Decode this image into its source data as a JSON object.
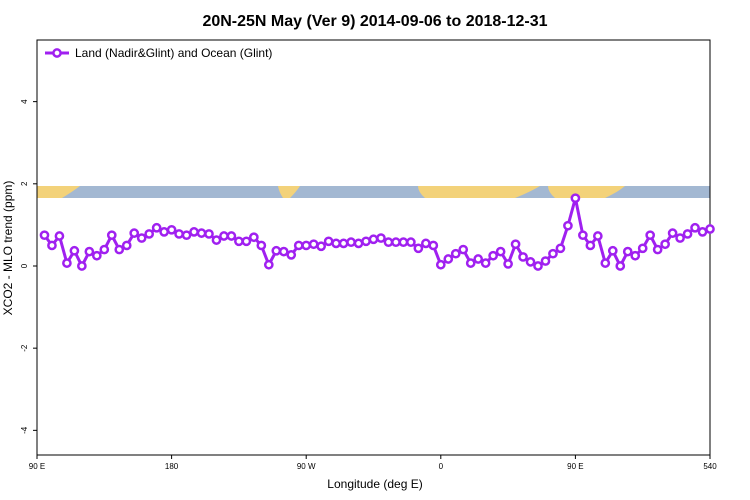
{
  "chart_data": {
    "type": "line",
    "title": "20N-25N May (Ver 9)   2014-09-06 to 2018-12-31",
    "xlabel": "Longitude (deg E)",
    "ylabel": "XCO2 - MLO trend (ppm)",
    "x": [
      95,
      100,
      105,
      110,
      115,
      120,
      125,
      130,
      135,
      140,
      145,
      150,
      155,
      160,
      165,
      170,
      175,
      180,
      185,
      190,
      195,
      200,
      205,
      210,
      215,
      220,
      225,
      230,
      235,
      240,
      245,
      250,
      255,
      260,
      265,
      270,
      275,
      280,
      285,
      290,
      295,
      300,
      305,
      310,
      315,
      320,
      325,
      330,
      335,
      340,
      345,
      350,
      355,
      360,
      365,
      370,
      375,
      380,
      385,
      390,
      395,
      400,
      405,
      410,
      415,
      420,
      425,
      430,
      435,
      440,
      445,
      450,
      455,
      460,
      465,
      470,
      475,
      480,
      485,
      490,
      495,
      500,
      505,
      510,
      515,
      520,
      525,
      530,
      535,
      540
    ],
    "series": [
      {
        "name": "Land (Nadir&Glint) and Ocean (Glint)",
        "color": "#a020f0",
        "values": [
          0.75,
          0.5,
          0.73,
          0.07,
          0.37,
          0.0,
          0.35,
          0.25,
          0.4,
          0.75,
          0.4,
          0.5,
          0.8,
          0.68,
          0.78,
          0.93,
          0.83,
          0.88,
          0.78,
          0.75,
          0.83,
          0.8,
          0.78,
          0.63,
          0.73,
          0.73,
          0.6,
          0.6,
          0.7,
          0.5,
          0.03,
          0.37,
          0.35,
          0.27,
          0.5,
          0.5,
          0.53,
          0.48,
          0.6,
          0.55,
          0.55,
          0.58,
          0.55,
          0.6,
          0.65,
          0.68,
          0.58,
          0.58,
          0.58,
          0.58,
          0.43,
          0.55,
          0.5,
          0.03,
          0.17,
          0.3,
          0.4,
          0.07,
          0.17,
          0.07,
          0.25,
          0.35,
          0.05,
          0.53,
          0.22,
          0.1,
          0.0,
          0.12,
          0.3,
          0.43,
          0.98,
          1.65,
          0.75,
          0.5,
          0.73,
          0.07,
          0.37,
          0.0,
          0.35,
          0.25,
          0.43,
          0.75,
          0.4,
          0.53,
          0.8,
          0.68,
          0.78,
          0.93,
          0.83,
          0.9
        ]
      }
    ],
    "xlim": [
      90,
      540
    ],
    "xticks": [
      {
        "value": 90,
        "label": "90 E"
      },
      180,
      {
        "value": 270,
        "label": "90 W"
      },
      {
        "value": 360,
        "label": "0"
      },
      {
        "value": 450,
        "label": "90 E"
      },
      540
    ],
    "ylim": [
      -4.6,
      5.5
    ],
    "yticks": [
      4,
      2,
      0,
      -2,
      -4
    ],
    "legend": "top-left"
  }
}
